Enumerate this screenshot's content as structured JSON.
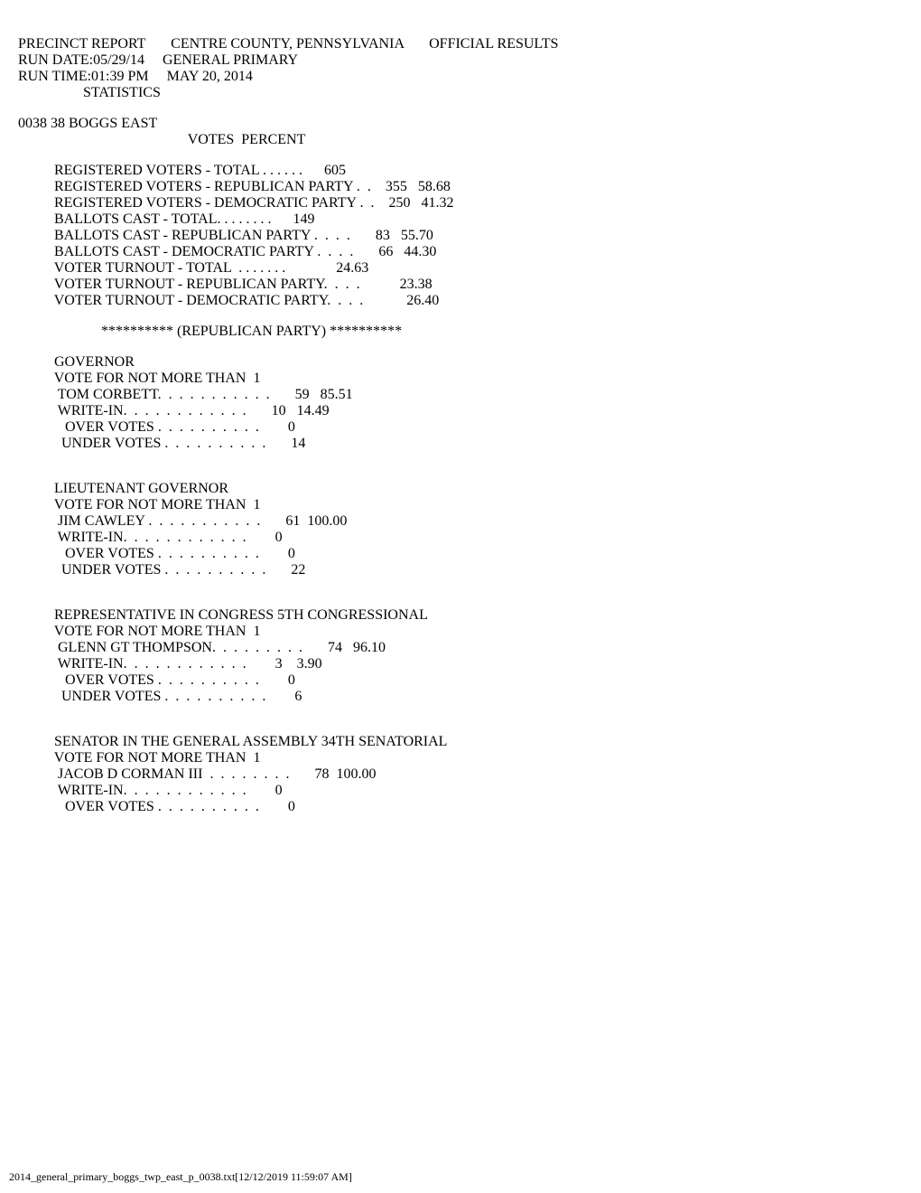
{
  "header": {
    "line1": "PRECINCT REPORT       CENTRE COUNTY, PENNSYLVANIA       OFFICIAL RESULTS",
    "line2": "RUN DATE:05/29/14     GENERAL PRIMARY",
    "line3": "RUN TIME:01:39 PM     MAY 20, 2014",
    "line4": "                  STATISTICS"
  },
  "precinct": "0038 38 BOGGS EAST",
  "votes_header": "                                               VOTES  PERCENT",
  "statistics": [
    "          REGISTERED VOTERS - TOTAL . . . . . .      605",
    "          REGISTERED VOTERS - REPUBLICAN PARTY .  .    355   58.68",
    "          REGISTERED VOTERS - DEMOCRATIC PARTY .  .    250   41.32",
    "          BALLOTS CAST - TOTAL. . . . . . . .      149",
    "          BALLOTS CAST - REPUBLICAN PARTY .  .  .  .       83   55.70",
    "          BALLOTS CAST - DEMOCRATIC PARTY .  .  .  .       66   44.30",
    "          VOTER TURNOUT - TOTAL  . . . . . . .              24.63",
    "          VOTER TURNOUT - REPUBLICAN PARTY.  .  .  .           23.38",
    "          VOTER TURNOUT - DEMOCRATIC PARTY.  .  .  .            26.40"
  ],
  "party_header": "                       ********** (REPUBLICAN PARTY) **********",
  "races": [
    {
      "title": "          GOVERNOR",
      "subtitle": "          VOTE FOR NOT MORE THAN  1",
      "lines": [
        "           TOM CORBETT.  .  .  .  .  .  .  .  .  .  .       59   85.51",
        "           WRITE-IN.  .  .  .  .  .  .  .  .  .  .  .       10   14.49",
        "             OVER VOTES .  .  .  .  .  .  .  .  .  .        0",
        "            UNDER VOTES .  .  .  .  .  .  .  .  .  .       14"
      ]
    },
    {
      "title": "          LIEUTENANT GOVERNOR",
      "subtitle": "          VOTE FOR NOT MORE THAN  1",
      "lines": [
        "           JIM CAWLEY .  .  .  .  .  .  .  .  .  .  .       61  100.00",
        "           WRITE-IN.  .  .  .  .  .  .  .  .  .  .  .        0",
        "             OVER VOTES .  .  .  .  .  .  .  .  .  .        0",
        "            UNDER VOTES .  .  .  .  .  .  .  .  .  .       22"
      ]
    },
    {
      "title": "          REPRESENTATIVE IN CONGRESS 5TH CONGRESSIONAL",
      "subtitle": "          VOTE FOR NOT MORE THAN  1",
      "lines": [
        "           GLENN GT THOMPSON.  .  .  .  .  .  .  .  .       74   96.10",
        "           WRITE-IN.  .  .  .  .  .  .  .  .  .  .  .        3    3.90",
        "             OVER VOTES .  .  .  .  .  .  .  .  .  .        0",
        "            UNDER VOTES .  .  .  .  .  .  .  .  .  .        6"
      ]
    },
    {
      "title": "          SENATOR IN THE GENERAL ASSEMBLY 34TH SENATORIAL",
      "subtitle": "          VOTE FOR NOT MORE THAN  1",
      "lines": [
        "           JACOB D CORMAN III  .  .  .  .  .  .  .  .       78  100.00",
        "           WRITE-IN.  .  .  .  .  .  .  .  .  .  .  .        0",
        "             OVER VOTES .  .  .  .  .  .  .  .  .  .        0"
      ]
    }
  ],
  "footer": "2014_general_primary_boggs_twp_east_p_0038.txt[12/12/2019 11:59:07 AM]"
}
